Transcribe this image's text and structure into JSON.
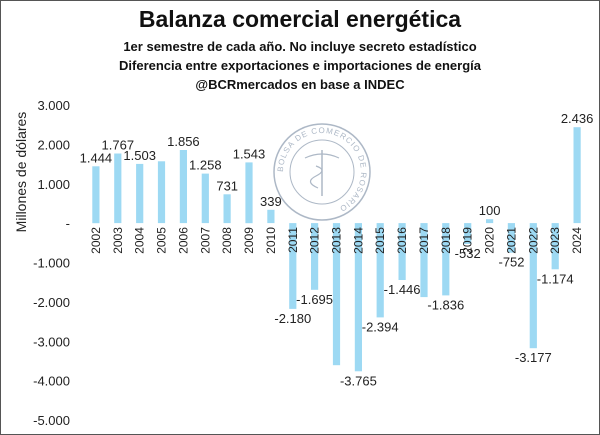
{
  "header": {
    "title": "Balanza comercial energética",
    "subtitle_1": "1er semestre de cada año. No incluye secreto estadístico",
    "subtitle_2": "Diferencia entre exportaciones e importaciones de energía",
    "subtitle_3": "@BCRmercados en base a INDEC"
  },
  "watermark": {
    "text": "BOLSA DE COMERCIO DE ROSARIO"
  },
  "chart_data": {
    "type": "bar",
    "title": "Balanza comercial energética",
    "xlabel": "",
    "ylabel": "Millones de dólares",
    "ylim": [
      -5000,
      3000
    ],
    "yticks": [
      3000,
      2000,
      1000,
      0,
      -1000,
      -2000,
      -3000,
      -4000,
      -5000
    ],
    "ytick_labels": [
      "3.000",
      "2.000",
      "1.000",
      "-",
      "-1.000",
      "-2.000",
      "-3.000",
      "-4.000",
      "-5.000"
    ],
    "categories": [
      "2002",
      "2003",
      "2004",
      "2005",
      "2006",
      "2007",
      "2008",
      "2009",
      "2010",
      "2011",
      "2012",
      "2013",
      "2014",
      "2015",
      "2016",
      "2017",
      "2018",
      "2019",
      "2020",
      "2021",
      "2022",
      "2023",
      "2024"
    ],
    "values": [
      1444,
      1767,
      1503,
      1570,
      1856,
      1258,
      731,
      1543,
      339,
      -2180,
      -1695,
      -3610,
      -3765,
      -2394,
      -1446,
      -1880,
      -1836,
      -532,
      100,
      -752,
      -3177,
      -1174,
      2436
    ],
    "data_labels": [
      "1.444",
      "1.767",
      "1.503",
      null,
      "1.856",
      "1.258",
      "731",
      "1.543",
      "339",
      "-2.180",
      "-1.695",
      null,
      "-3.765",
      "-2.394",
      "-1.446",
      null,
      "-1.836",
      "-532",
      "100",
      "-752",
      "-3.177",
      "-1.174",
      "2.436"
    ],
    "bar_color": "#9dd9f3",
    "grid": false
  }
}
